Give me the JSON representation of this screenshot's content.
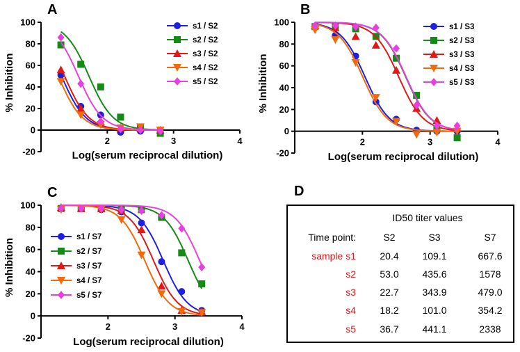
{
  "chart_data": [
    {
      "panel": "A",
      "type": "line",
      "xlabel": "Log(serum reciprocal dilution)",
      "ylabel": "% Inhibition",
      "xlim": [
        1,
        4
      ],
      "ylim": [
        -20,
        100
      ],
      "xticks": [
        2,
        3,
        4
      ],
      "yticks": [
        -20,
        0,
        20,
        40,
        60,
        80,
        100
      ],
      "x": [
        1.3,
        1.6,
        1.9,
        2.2,
        2.5,
        2.8
      ],
      "series": [
        {
          "name": "s1 / S2",
          "color": "#1f1fe0",
          "marker": "circle",
          "values": [
            51,
            22,
            14,
            -2,
            -1,
            0
          ],
          "ic50": 1.31
        },
        {
          "name": "s2 / S2",
          "color": "#168a16",
          "marker": "square",
          "values": [
            79,
            61,
            40,
            12,
            2,
            -3
          ],
          "ic50": 1.724
        },
        {
          "name": "s3 / S2",
          "color": "#e01818",
          "marker": "triangle",
          "values": [
            56,
            20,
            8,
            2,
            2,
            0
          ],
          "ic50": 1.356
        },
        {
          "name": "s4 / S2",
          "color": "#f26a0a",
          "marker": "triangle-down",
          "values": [
            45,
            14,
            5,
            2,
            3,
            0
          ],
          "ic50": 1.26
        },
        {
          "name": "s5 / S2",
          "color": "#e83fe0",
          "marker": "diamond",
          "values": [
            86,
            43,
            8,
            1,
            0,
            -1
          ],
          "ic50": 1.565
        }
      ]
    },
    {
      "panel": "B",
      "type": "line",
      "xlabel": "Log(serum reciprocal dilution)",
      "ylabel": "% Inhibition",
      "xlim": [
        1,
        4
      ],
      "ylim": [
        -20,
        100
      ],
      "xticks": [
        2,
        3,
        4
      ],
      "yticks": [
        -20,
        0,
        20,
        40,
        60,
        80,
        100
      ],
      "x": [
        1.3,
        1.6,
        1.9,
        2.2,
        2.5,
        2.8,
        3.1,
        3.4
      ],
      "series": [
        {
          "name": "s1 / S3",
          "color": "#1f1fe0",
          "marker": "circle",
          "values": [
            96,
            88,
            69,
            27,
            11,
            1,
            0,
            0
          ],
          "ic50": 2.038
        },
        {
          "name": "s2 / S3",
          "color": "#168a16",
          "marker": "square",
          "values": [
            96,
            97,
            94,
            87,
            67,
            33,
            2,
            -6
          ],
          "ic50": 2.639
        },
        {
          "name": "s3 / S3",
          "color": "#e01818",
          "marker": "triangle",
          "values": [
            97,
            95,
            87,
            79,
            56,
            21,
            10,
            3
          ],
          "ic50": 2.536
        },
        {
          "name": "s4 / S3",
          "color": "#f26a0a",
          "marker": "triangle-down",
          "values": [
            93,
            84,
            63,
            31,
            9,
            -3,
            -1,
            0
          ],
          "ic50": 2.004
        },
        {
          "name": "s5 / S3",
          "color": "#e83fe0",
          "marker": "diamond",
          "values": [
            97,
            97,
            96,
            95,
            76,
            24,
            5,
            5
          ],
          "ic50": 2.645
        }
      ]
    },
    {
      "panel": "C",
      "type": "line",
      "xlabel": "Log(serum reciprocal dilution)",
      "ylabel": "% Inhibition",
      "xlim": [
        1,
        4
      ],
      "ylim": [
        -20,
        100
      ],
      "xticks": [
        2,
        3,
        4
      ],
      "yticks": [
        -20,
        0,
        20,
        40,
        60,
        80,
        100
      ],
      "x": [
        1.3,
        1.6,
        1.9,
        2.2,
        2.5,
        2.8,
        3.1,
        3.4
      ],
      "series": [
        {
          "name": "s1 / S7",
          "color": "#1f1fe0",
          "marker": "circle",
          "values": [
            97,
            97,
            96,
            94,
            84,
            49,
            22,
            5
          ],
          "ic50": 2.825
        },
        {
          "name": "s2 / S7",
          "color": "#168a16",
          "marker": "square",
          "values": [
            97,
            97,
            97,
            97,
            96,
            89,
            57,
            29
          ],
          "ic50": 3.198
        },
        {
          "name": "s3 / S7",
          "color": "#e01818",
          "marker": "triangle",
          "values": [
            98,
            97,
            97,
            95,
            78,
            27,
            5,
            4
          ],
          "ic50": 2.68
        },
        {
          "name": "s4 / S7",
          "color": "#f26a0a",
          "marker": "triangle-down",
          "values": [
            96,
            97,
            96,
            87,
            55,
            20,
            4,
            3
          ],
          "ic50": 2.549
        },
        {
          "name": "s5 / S7",
          "color": "#e83fe0",
          "marker": "diamond",
          "values": [
            97,
            97,
            97,
            96,
            95,
            91,
            79,
            44
          ],
          "ic50": 3.369
        }
      ]
    }
  ],
  "table": {
    "panel": "D",
    "title": "ID50 titer values",
    "header": [
      "Time point:",
      "S2",
      "S3",
      "S7"
    ],
    "rows": [
      [
        "sample s1",
        "20.4",
        "109.1",
        "667.6"
      ],
      [
        "s2",
        "53.0",
        "435.6",
        "1578"
      ],
      [
        "s3",
        "22.7",
        "343.9",
        "479.0"
      ],
      [
        "s4",
        "18.2",
        "101.0",
        "354.2"
      ],
      [
        "s5",
        "36.7",
        "441.1",
        "2338"
      ]
    ],
    "row_label_color": "#e01818"
  }
}
